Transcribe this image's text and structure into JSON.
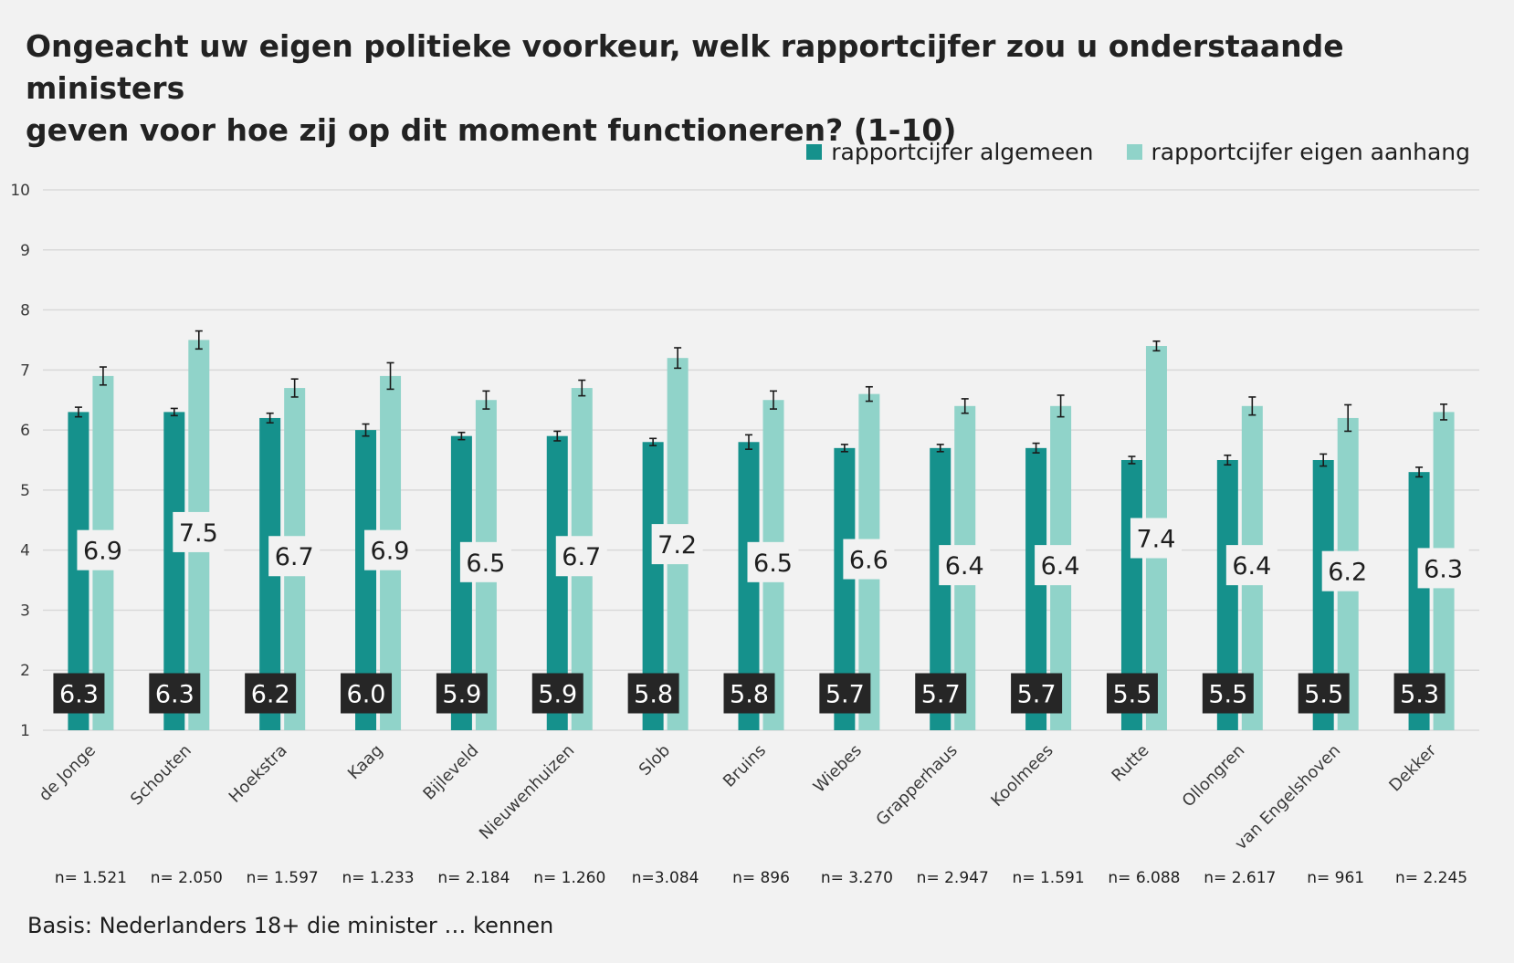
{
  "chart_data": {
    "type": "bar",
    "title": "Ongeacht uw eigen politieke voorkeur, welk rapportcijfer zou u onderstaande ministers geven voor hoe zij op dit moment functioneren? (1-10)",
    "title_lines": [
      "Ongeacht uw eigen politieke voorkeur, welk rapportcijfer zou u onderstaande ministers",
      "geven voor hoe zij op dit moment functioneren? (1-10)"
    ],
    "xlabel": "",
    "ylabel": "",
    "ylim": [
      1,
      10
    ],
    "yticks": [
      1,
      2,
      3,
      4,
      5,
      6,
      7,
      8,
      9,
      10
    ],
    "grid": true,
    "legend_position": "top-right",
    "categories": [
      "de Jonge",
      "Schouten",
      "Hoekstra",
      "Kaag",
      "Bijleveld",
      "Nieuwenhuizen",
      "Slob",
      "Bruins",
      "Wiebes",
      "Grapperhaus",
      "Koolmees",
      "Rutte",
      "Ollongren",
      "van Engelshoven",
      "Dekker"
    ],
    "sample_sizes": [
      "n= 1.521",
      "n= 2.050",
      "n= 1.597",
      "n= 1.233",
      "n= 2.184",
      "n= 1.260",
      "n=3.084",
      "n= 896",
      "n= 3.270",
      "n= 2.947",
      "n= 1.591",
      "n= 6.088",
      "n= 2.617",
      "n= 961",
      "n= 2.245"
    ],
    "series": [
      {
        "name": "rapportcijfer algemeen",
        "color": "#15918c",
        "values": [
          6.3,
          6.3,
          6.2,
          6.0,
          5.9,
          5.9,
          5.8,
          5.8,
          5.7,
          5.7,
          5.7,
          5.5,
          5.5,
          5.5,
          5.3
        ],
        "labels": [
          "6.3",
          "6.3",
          "6.2",
          "6.0",
          "5.9",
          "5.9",
          "5.8",
          "5.8",
          "5.7",
          "5.7",
          "5.7",
          "5.5",
          "5.5",
          "5.5",
          "5.3"
        ],
        "error": [
          0.08,
          0.06,
          0.08,
          0.1,
          0.06,
          0.08,
          0.06,
          0.12,
          0.06,
          0.06,
          0.08,
          0.06,
          0.08,
          0.1,
          0.08
        ]
      },
      {
        "name": "rapportcijfer eigen aanhang",
        "color": "#90d3c9",
        "values": [
          6.9,
          7.5,
          6.7,
          6.9,
          6.5,
          6.7,
          7.2,
          6.5,
          6.6,
          6.4,
          6.4,
          7.4,
          6.4,
          6.2,
          6.3
        ],
        "labels": [
          "6.9",
          "7.5",
          "6.7",
          "6.9",
          "6.5",
          "6.7",
          "7.2",
          "6.5",
          "6.6",
          "6.4",
          "6.4",
          "7.4",
          "6.4",
          "6.2",
          "6.3"
        ],
        "error": [
          0.15,
          0.15,
          0.15,
          0.22,
          0.15,
          0.13,
          0.17,
          0.15,
          0.12,
          0.12,
          0.18,
          0.08,
          0.15,
          0.22,
          0.13
        ],
        "label_positions": [
          4.0,
          4.3,
          3.9,
          4.0,
          3.8,
          3.9,
          4.1,
          3.8,
          3.85,
          3.75,
          3.75,
          4.2,
          3.75,
          3.65,
          3.7
        ]
      }
    ],
    "colors": {
      "background": "#f2f2f2",
      "grid": "#d9d9d9",
      "axis_text": "#3a3a3a",
      "label_box_dark": "#262626",
      "label_box_light": "#f2f2f2"
    }
  },
  "footer": {
    "basis": "Basis: Nederlanders 18+ die minister … kennen"
  }
}
